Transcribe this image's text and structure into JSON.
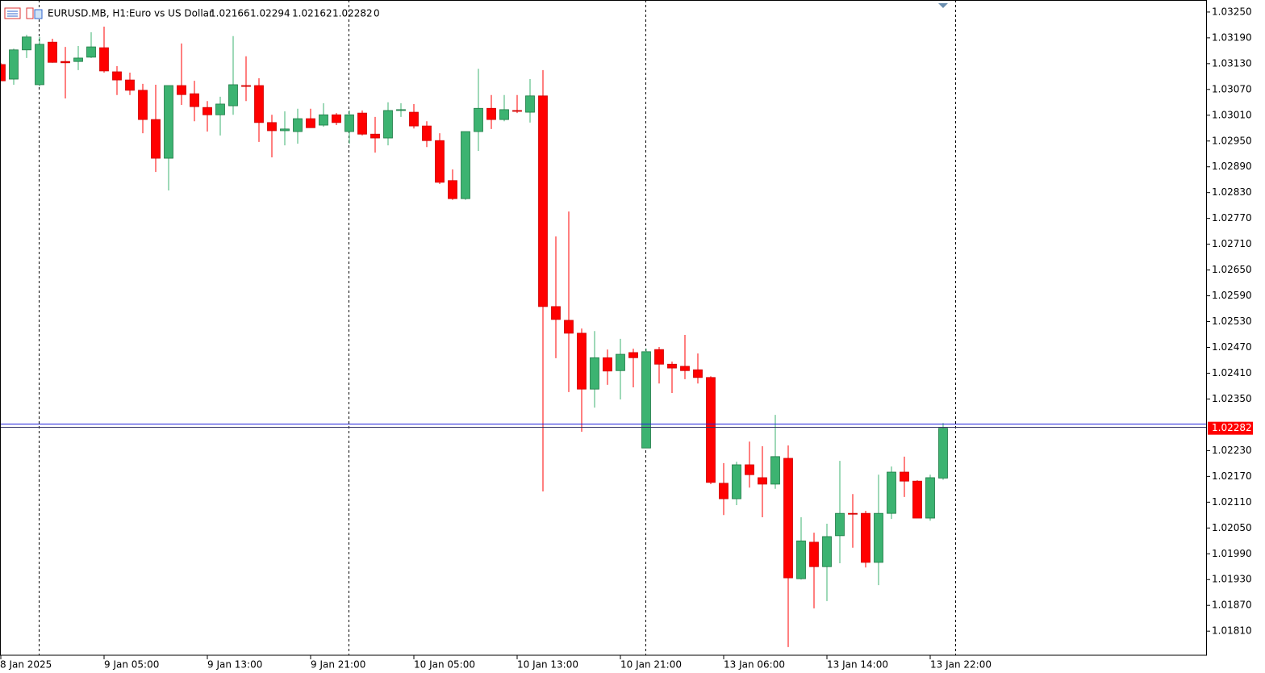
{
  "chart_data": {
    "type": "candlestick",
    "header": {
      "symbol": "EURUSD.MB, H1:",
      "description": "Euro vs US Dollar",
      "info_value": 0
    },
    "categories": [
      "8 Jan 2025",
      null,
      null,
      null,
      null,
      null,
      null,
      null,
      "9 Jan 05:00",
      null,
      null,
      null,
      null,
      null,
      null,
      null,
      "9 Jan 13:00",
      null,
      null,
      null,
      null,
      null,
      null,
      null,
      "9 Jan 21:00",
      null,
      null,
      null,
      null,
      null,
      null,
      null,
      "10 Jan 05:00",
      null,
      null,
      null,
      null,
      null,
      null,
      null,
      "10 Jan 13:00",
      null,
      null,
      null,
      null,
      null,
      null,
      null,
      "10 Jan 21:00",
      null,
      null,
      null,
      null,
      null,
      null,
      null,
      "13 Jan 06:00",
      null,
      null,
      null,
      null,
      null,
      null,
      null,
      "13 Jan 14:00",
      null,
      null,
      null,
      null,
      null,
      null,
      null,
      "13 Jan 22:00",
      null
    ],
    "open": [
      1.03128,
      1.03094,
      1.03162,
      1.03081,
      1.0318,
      1.03135,
      1.03135,
      1.03145,
      1.03167,
      1.03111,
      1.03092,
      1.03068,
      1.03,
      1.0291,
      1.03079,
      1.0306,
      1.03028,
      1.03011,
      1.03032,
      1.03079,
      1.03079,
      1.02993,
      1.02974,
      1.02972,
      1.03002,
      1.02987,
      1.03011,
      1.02972,
      1.03015,
      1.02966,
      1.02957,
      1.03021,
      1.03017,
      1.02985,
      1.02951,
      1.02858,
      1.02816,
      1.02972,
      1.03026,
      1.03,
      1.03021,
      1.03017,
      1.03055,
      1.02565,
      1.02533,
      1.02503,
      1.02373,
      1.02446,
      1.02416,
      1.02458,
      1.02236,
      1.02465,
      1.02431,
      1.02426,
      1.02418,
      1.024,
      1.02154,
      1.02118,
      1.02197,
      1.02167,
      1.02152,
      1.02212,
      1.01932,
      1.02017,
      1.0196,
      1.02032,
      1.02084,
      1.02084,
      1.0197,
      1.02084,
      1.0218,
      1.02159,
      1.02073,
      1.02166
    ],
    "high": [
      1.03132,
      1.03165,
      1.03197,
      1.03192,
      1.03188,
      1.03169,
      1.03171,
      1.03203,
      1.03216,
      1.03124,
      1.03109,
      1.03083,
      1.03081,
      1.03079,
      1.03177,
      1.0309,
      1.03043,
      1.03053,
      1.03194,
      1.03147,
      1.03096,
      1.03011,
      1.03019,
      1.03025,
      1.03025,
      1.03038,
      1.03015,
      1.03021,
      1.03021,
      1.03006,
      1.0304,
      1.03038,
      1.03036,
      1.02996,
      1.02968,
      1.02884,
      1.02972,
      1.03118,
      1.03057,
      1.03057,
      1.03057,
      1.03094,
      1.03115,
      1.02728,
      1.02786,
      1.02514,
      1.02508,
      1.02465,
      1.0249,
      1.02467,
      1.02467,
      1.02471,
      1.02437,
      1.02499,
      1.02456,
      1.02403,
      1.02201,
      1.02204,
      1.02251,
      1.0224,
      1.02313,
      1.02242,
      1.02075,
      1.02039,
      1.0206,
      1.02206,
      1.02129,
      1.0209,
      1.02174,
      1.02193,
      1.02216,
      1.02161,
      1.02174,
      1.02294
    ],
    "low": [
      1.0309,
      1.03081,
      1.03143,
      1.03077,
      1.03132,
      1.03049,
      1.03115,
      1.03143,
      1.03109,
      1.03057,
      1.03057,
      1.02968,
      1.02878,
      1.02835,
      1.03034,
      1.02996,
      1.02972,
      1.02963,
      1.03011,
      1.03043,
      1.02948,
      1.02912,
      1.0294,
      1.02944,
      1.02981,
      1.02983,
      1.02987,
      1.02944,
      1.02963,
      1.02923,
      1.0294,
      1.03006,
      1.02979,
      1.02936,
      1.0285,
      1.02813,
      1.02813,
      1.02927,
      1.02978,
      1.02996,
      1.03015,
      1.02993,
      1.02135,
      1.02445,
      1.02366,
      1.02274,
      1.0233,
      1.02383,
      1.02349,
      1.02377,
      1.02236,
      1.02386,
      1.02364,
      1.02396,
      1.02386,
      1.02152,
      1.0208,
      1.02103,
      1.02144,
      1.02075,
      1.02141,
      1.01773,
      1.0193,
      1.01863,
      1.0188,
      1.01968,
      1.02004,
      1.01958,
      1.01917,
      1.02071,
      1.02122,
      1.02073,
      1.02067,
      1.02162
    ],
    "close": [
      1.0309,
      1.03162,
      1.03192,
      1.03175,
      1.03133,
      1.03132,
      1.03143,
      1.03169,
      1.03113,
      1.03092,
      1.03068,
      1.03,
      1.0291,
      1.03079,
      1.03058,
      1.0303,
      1.03011,
      1.03036,
      1.03081,
      1.03077,
      1.02993,
      1.02974,
      1.02978,
      1.03002,
      1.02981,
      1.03011,
      1.02993,
      1.03011,
      1.02966,
      1.02957,
      1.03021,
      1.03023,
      1.02985,
      1.02951,
      1.02854,
      1.02816,
      1.02972,
      1.03026,
      1.03,
      1.03023,
      1.03019,
      1.03055,
      1.02565,
      1.02535,
      1.02503,
      1.02373,
      1.02446,
      1.02415,
      1.02454,
      1.02446,
      1.0246,
      1.02431,
      1.02422,
      1.02416,
      1.024,
      1.02156,
      1.02118,
      1.02197,
      1.02174,
      1.02152,
      1.02216,
      1.01934,
      1.0202,
      1.0196,
      1.0203,
      1.02084,
      1.02082,
      1.0197,
      1.02084,
      1.0218,
      1.02159,
      1.02073,
      1.02167,
      1.02282
    ],
    "up_color": "#3cb371",
    "down_color": "#ff0000",
    "ylim": [
      1.01754,
      1.03278
    ],
    "yticks": [
      {
        "value": 1.0325,
        "label": "1.03250"
      },
      {
        "value": 1.0319,
        "label": "1.03190"
      },
      {
        "value": 1.0313,
        "label": "1.03130"
      },
      {
        "value": 1.0307,
        "label": "1.03070"
      },
      {
        "value": 1.0301,
        "label": "1.03010"
      },
      {
        "value": 1.0295,
        "label": "1.02950"
      },
      {
        "value": 1.0289,
        "label": "1.02890"
      },
      {
        "value": 1.0283,
        "label": "1.02830"
      },
      {
        "value": 1.0277,
        "label": "1.02770"
      },
      {
        "value": 1.0271,
        "label": "1.02710"
      },
      {
        "value": 1.0265,
        "label": "1.02650"
      },
      {
        "value": 1.0259,
        "label": "1.02590"
      },
      {
        "value": 1.0253,
        "label": "1.02530"
      },
      {
        "value": 1.0247,
        "label": "1.02470"
      },
      {
        "value": 1.0241,
        "label": "1.02410"
      },
      {
        "value": 1.0235,
        "label": "1.02350"
      },
      {
        "value": 1.0223,
        "label": "1.02230"
      },
      {
        "value": 1.0217,
        "label": "1.02170"
      },
      {
        "value": 1.0211,
        "label": "1.02110"
      },
      {
        "value": 1.0205,
        "label": "1.02050"
      },
      {
        "value": 1.0199,
        "label": "1.01990"
      },
      {
        "value": 1.0193,
        "label": "1.01930"
      },
      {
        "value": 1.0187,
        "label": "1.01870"
      },
      {
        "value": 1.0181,
        "label": "1.01810"
      }
    ],
    "grid": false
  }
}
